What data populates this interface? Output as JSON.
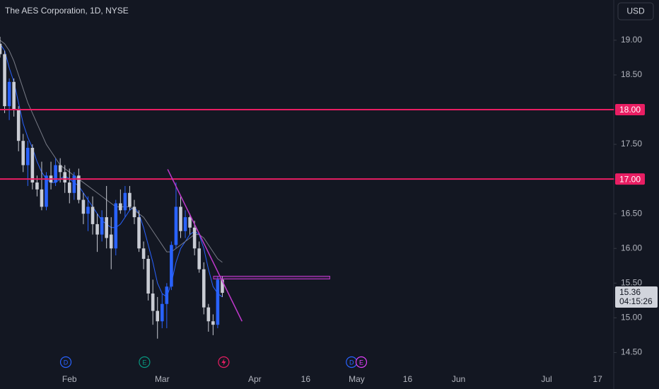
{
  "chart_data": {
    "type": "candlestick",
    "title": "The AES Corporation, 1D, NYSE",
    "currency": "USD",
    "up_color": "#2962ff",
    "down_color": "#c9ccd4",
    "open": [
      18.95,
      18.8,
      18.05,
      18.4,
      18.0,
      17.55,
      17.2,
      17.45,
      16.95,
      16.85,
      16.6,
      17.05,
      16.95,
      17.2,
      17.1,
      16.95,
      16.8,
      17.05,
      16.7,
      16.5,
      16.6,
      16.35,
      16.2,
      16.45,
      16.2,
      16.0,
      16.65,
      16.55,
      16.8,
      16.6,
      16.45,
      16.0,
      15.85,
      15.35,
      15.1,
      14.95,
      15.2,
      15.45,
      16.05,
      16.6,
      16.25,
      16.45,
      16.3,
      16.0,
      15.7,
      15.15,
      14.95,
      14.9,
      15.55
    ],
    "high": [
      19.05,
      18.85,
      18.45,
      18.45,
      18.05,
      17.65,
      17.55,
      17.5,
      17.05,
      17.25,
      17.1,
      17.25,
      17.3,
      17.3,
      17.2,
      17.15,
      17.1,
      17.15,
      16.8,
      16.75,
      16.75,
      16.5,
      16.55,
      16.9,
      16.45,
      16.7,
      16.85,
      16.9,
      16.9,
      16.7,
      16.55,
      16.1,
      15.9,
      15.55,
      15.3,
      15.35,
      15.5,
      16.1,
      16.95,
      16.75,
      16.55,
      16.5,
      16.4,
      16.1,
      15.8,
      15.2,
      15.05,
      15.6,
      15.6
    ],
    "low": [
      18.75,
      17.95,
      17.85,
      17.9,
      17.4,
      17.1,
      16.9,
      16.85,
      16.75,
      16.55,
      16.55,
      16.85,
      16.9,
      16.95,
      16.8,
      16.65,
      16.7,
      16.65,
      16.35,
      16.25,
      16.2,
      15.95,
      16.1,
      16.0,
      15.7,
      15.9,
      16.5,
      16.45,
      16.55,
      16.35,
      15.95,
      15.7,
      15.25,
      14.9,
      14.7,
      14.85,
      14.85,
      15.4,
      16.0,
      16.15,
      16.15,
      16.2,
      15.9,
      15.65,
      15.05,
      14.8,
      14.75,
      14.85,
      15.3
    ],
    "close": [
      18.8,
      18.05,
      18.4,
      18.0,
      17.55,
      17.2,
      17.45,
      16.95,
      16.85,
      16.6,
      17.05,
      16.95,
      17.2,
      17.1,
      16.95,
      16.8,
      17.05,
      16.7,
      16.5,
      16.6,
      16.35,
      16.2,
      16.45,
      16.15,
      16.0,
      16.65,
      16.55,
      16.8,
      16.6,
      16.45,
      16.0,
      15.85,
      15.35,
      15.1,
      14.95,
      15.2,
      15.45,
      16.05,
      16.6,
      16.25,
      16.45,
      16.3,
      16.0,
      15.7,
      15.15,
      14.95,
      14.9,
      15.55,
      15.36
    ],
    "series": [
      {
        "color": "#2962ff",
        "values": [
          18.95,
          18.85,
          18.6,
          18.4,
          18.1,
          17.8,
          17.6,
          17.45,
          17.25,
          17.1,
          17.0,
          16.95,
          16.95,
          17.0,
          17.05,
          17.0,
          16.95,
          16.9,
          16.8,
          16.7,
          16.6,
          16.5,
          16.4,
          16.35,
          16.3,
          16.3,
          16.35,
          16.45,
          16.55,
          16.6,
          16.5,
          16.3,
          16.05,
          15.8,
          15.5,
          15.35,
          15.3,
          15.5,
          15.8,
          16.0,
          16.1,
          16.2,
          16.25,
          16.2,
          16.0,
          15.7,
          15.45,
          15.35,
          15.3
        ]
      },
      {
        "color": "#787b86",
        "values": [
          19.0,
          18.95,
          18.85,
          18.7,
          18.5,
          18.3,
          18.1,
          17.95,
          17.8,
          17.65,
          17.5,
          17.4,
          17.3,
          17.2,
          17.15,
          17.1,
          17.05,
          17.0,
          16.95,
          16.9,
          16.85,
          16.8,
          16.75,
          16.7,
          16.65,
          16.6,
          16.6,
          16.6,
          16.6,
          16.55,
          16.5,
          16.45,
          16.35,
          16.25,
          16.15,
          16.05,
          15.95,
          15.95,
          16.0,
          16.05,
          16.1,
          16.15,
          16.2,
          16.2,
          16.15,
          16.05,
          15.95,
          15.85,
          15.8
        ]
      }
    ],
    "xlim": [
      0,
      132.5
    ],
    "ylim": [
      14.28,
      19.58
    ],
    "xticks": [
      {
        "value": 15,
        "label": "Feb"
      },
      {
        "value": 35,
        "label": "Mar"
      },
      {
        "value": 55,
        "label": "Apr"
      },
      {
        "value": 66,
        "label": "16"
      },
      {
        "value": 77,
        "label": "May"
      },
      {
        "value": 88,
        "label": "16"
      },
      {
        "value": 99,
        "label": "Jun"
      },
      {
        "value": 118,
        "label": "Jul"
      },
      {
        "value": 129,
        "label": "17"
      }
    ],
    "yticks": [
      {
        "value": 14.5,
        "label": "14.50"
      },
      {
        "value": 15,
        "label": "15.00"
      },
      {
        "value": 15.5,
        "label": "15.50"
      },
      {
        "value": 16,
        "label": "16.00"
      },
      {
        "value": 16.5,
        "label": "16.50"
      },
      {
        "value": 17,
        "label": "17.00"
      },
      {
        "value": 17.5,
        "label": "17.50"
      },
      {
        "value": 18,
        "label": "18.00"
      },
      {
        "value": 18.5,
        "label": "18.50"
      },
      {
        "value": 19,
        "label": "19.00"
      }
    ],
    "levels": [
      {
        "value": 18,
        "label": "18.00",
        "color": "#e91e63"
      },
      {
        "value": 17,
        "label": "17.00",
        "color": "#e91e63"
      }
    ],
    "last_price": {
      "value": 15.36,
      "label": "15.36"
    },
    "countdown": "04:15:26",
    "trendline": {
      "x": [
        36.2,
        52.25
      ],
      "y": [
        17.14,
        14.95
      ],
      "color": "#c038cc"
    },
    "rectangle": {
      "x": [
        46.1,
        71.2
      ],
      "y": [
        15.6,
        15.56
      ],
      "color": "#c038cc"
    },
    "events": [
      {
        "x": 14.2,
        "label": "D",
        "color": "#2962ff"
      },
      {
        "x": 31.2,
        "label": "E",
        "color": "#089981"
      },
      {
        "x": 48.3,
        "color": "#e91e63"
      },
      {
        "x": 75.9,
        "label": "D",
        "color": "#2962ff"
      },
      {
        "x": 78.0,
        "label": "E",
        "color": "#e040fb"
      }
    ]
  }
}
